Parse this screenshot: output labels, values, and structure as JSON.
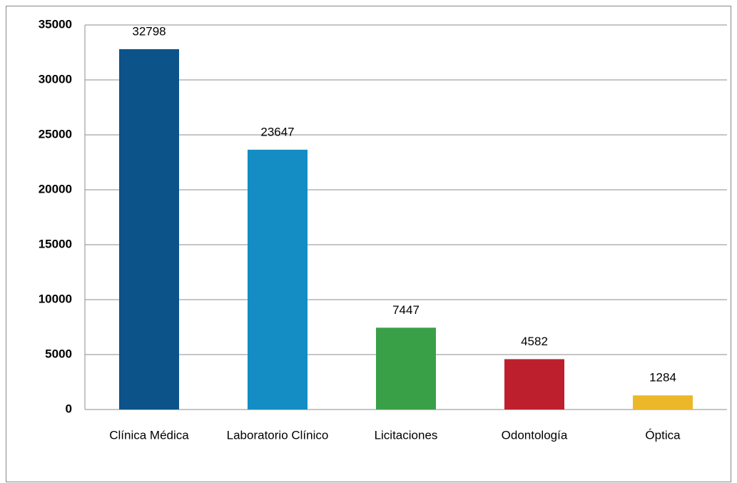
{
  "chart_data": {
    "type": "bar",
    "categories": [
      "Clínica Médica",
      "Laboratorio Clínico",
      "Licitaciones",
      "Odontología",
      "Óptica"
    ],
    "values": [
      32798,
      23647,
      7447,
      4582,
      1284
    ],
    "colors": [
      "#0b5389",
      "#138dc3",
      "#3aa048",
      "#bd1f2c",
      "#ecb82a"
    ],
    "ylim": [
      0,
      35000
    ],
    "yticks": [
      0,
      5000,
      10000,
      15000,
      20000,
      25000,
      30000,
      35000
    ],
    "grid": true
  }
}
